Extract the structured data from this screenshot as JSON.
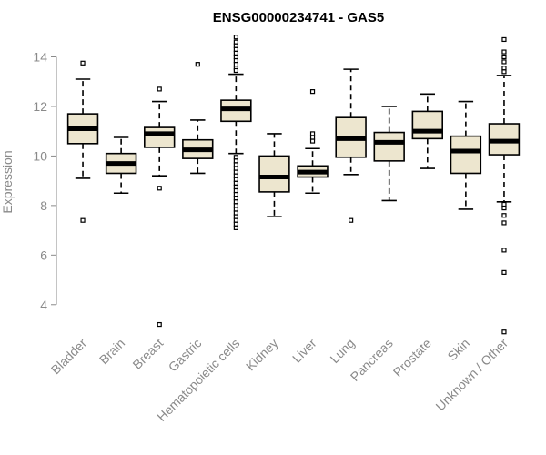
{
  "chart_data": {
    "type": "boxplot",
    "title": "ENSG00000234741 - GAS5",
    "xlabel": "",
    "ylabel": "Expression",
    "ylim": [
      3.0,
      14.9
    ],
    "yticks": [
      4,
      6,
      8,
      10,
      12,
      14
    ],
    "grid": false,
    "box_fill": "#ede6cf",
    "categories": [
      "Bladder",
      "Brain",
      "Breast",
      "Gastric",
      "Hematopoietic cells",
      "Kidney",
      "Liver",
      "Lung",
      "Pancreas",
      "Prostate",
      "Skin",
      "Unknown / Other"
    ],
    "boxes": [
      {
        "q1": 10.5,
        "median": 11.1,
        "q3": 11.7,
        "whisker_low": 9.1,
        "whisker_high": 13.1,
        "outliers": [
          13.75,
          7.4
        ]
      },
      {
        "q1": 9.3,
        "median": 9.7,
        "q3": 10.1,
        "whisker_low": 8.5,
        "whisker_high": 10.75,
        "outliers": []
      },
      {
        "q1": 10.35,
        "median": 10.9,
        "q3": 11.15,
        "whisker_low": 9.2,
        "whisker_high": 12.2,
        "outliers": [
          12.7,
          8.7,
          3.2
        ]
      },
      {
        "q1": 9.9,
        "median": 10.25,
        "q3": 10.65,
        "whisker_low": 9.3,
        "whisker_high": 11.45,
        "outliers": [
          13.7
        ]
      },
      {
        "q1": 11.4,
        "median": 11.9,
        "q3": 12.25,
        "whisker_low": 10.1,
        "whisker_high": 13.3,
        "outliers": [
          14.8,
          14.6,
          14.45,
          14.3,
          14.15,
          14.0,
          13.85,
          13.7,
          13.55,
          13.45,
          9.95,
          9.8,
          9.65,
          9.5,
          9.35,
          9.2,
          9.05,
          8.9,
          8.75,
          8.6,
          8.45,
          8.3,
          8.15,
          8.0,
          7.85,
          7.7,
          7.55,
          7.4,
          7.25,
          7.1
        ]
      },
      {
        "q1": 8.55,
        "median": 9.15,
        "q3": 10.0,
        "whisker_low": 7.55,
        "whisker_high": 10.9,
        "outliers": []
      },
      {
        "q1": 9.15,
        "median": 9.35,
        "q3": 9.6,
        "whisker_low": 8.5,
        "whisker_high": 10.3,
        "outliers": [
          12.6,
          10.9,
          10.75,
          10.6
        ]
      },
      {
        "q1": 9.95,
        "median": 10.7,
        "q3": 11.55,
        "whisker_low": 9.25,
        "whisker_high": 13.5,
        "outliers": [
          7.4
        ]
      },
      {
        "q1": 9.8,
        "median": 10.55,
        "q3": 10.95,
        "whisker_low": 8.2,
        "whisker_high": 12.0,
        "outliers": []
      },
      {
        "q1": 10.7,
        "median": 11.0,
        "q3": 11.8,
        "whisker_low": 9.5,
        "whisker_high": 12.5,
        "outliers": []
      },
      {
        "q1": 9.3,
        "median": 10.2,
        "q3": 10.8,
        "whisker_low": 7.85,
        "whisker_high": 12.2,
        "outliers": []
      },
      {
        "q1": 10.05,
        "median": 10.6,
        "q3": 11.3,
        "whisker_low": 8.15,
        "whisker_high": 13.25,
        "outliers": [
          14.7,
          14.2,
          14.0,
          13.8,
          13.55,
          13.4,
          8.05,
          7.9,
          7.6,
          7.3,
          6.2,
          5.3,
          2.9
        ]
      }
    ]
  }
}
